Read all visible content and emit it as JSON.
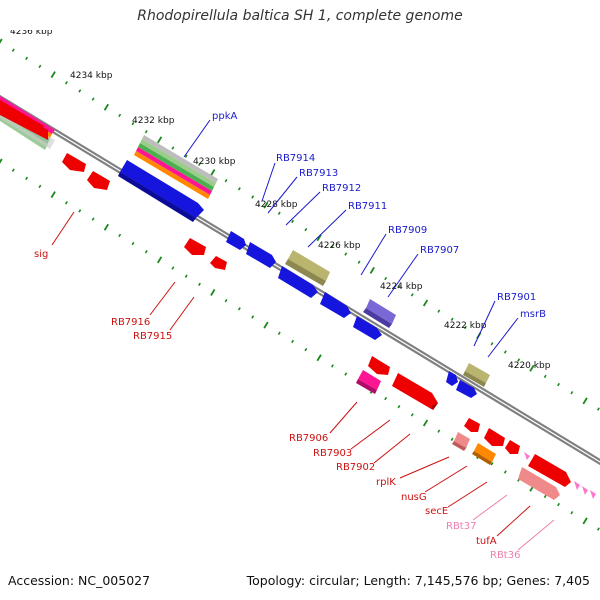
{
  "title": "Rhodopirellula baltica SH 1, complete genome",
  "footer": {
    "accession": "Accession: NC_005027",
    "summary": "Topology: circular; Length: 7,145,576 bp; Genes: 7,405"
  },
  "kbp_labels": [
    "4236 kbp",
    "4234 kbp",
    "4232 kbp",
    "4230 kbp",
    "4228 kbp",
    "4226 kbp",
    "4224 kbp",
    "4222 kbp",
    "4220 kbp"
  ],
  "upper_gene_labels": [
    "ppkA",
    "RB7914",
    "RB7913",
    "RB7912",
    "RB7911",
    "RB7909",
    "RB7907",
    "RB7901",
    "msrB"
  ],
  "lower_gene_labels": [
    "sig",
    "RB7916",
    "RB7915",
    "RB7906",
    "RB7903",
    "RB7902",
    "rplK",
    "nusG",
    "secE",
    "RBt37",
    "tufA",
    "RBt36"
  ],
  "colors": {
    "upper_label": "#1a1acc",
    "lower_label": "#cc1111",
    "trna_label": "#ee7fb0",
    "backbone": "#7f7f7f",
    "tick": "#1b8a1b",
    "gene_red": "#ee0000",
    "gene_blue": "#1515dd",
    "gene_olive": "#b9b46e",
    "gene_purple": "#7a68d6",
    "gene_orange": "#ff8800",
    "gene_magenta": "#ff1493",
    "gene_pink": "#f08a8a"
  }
}
